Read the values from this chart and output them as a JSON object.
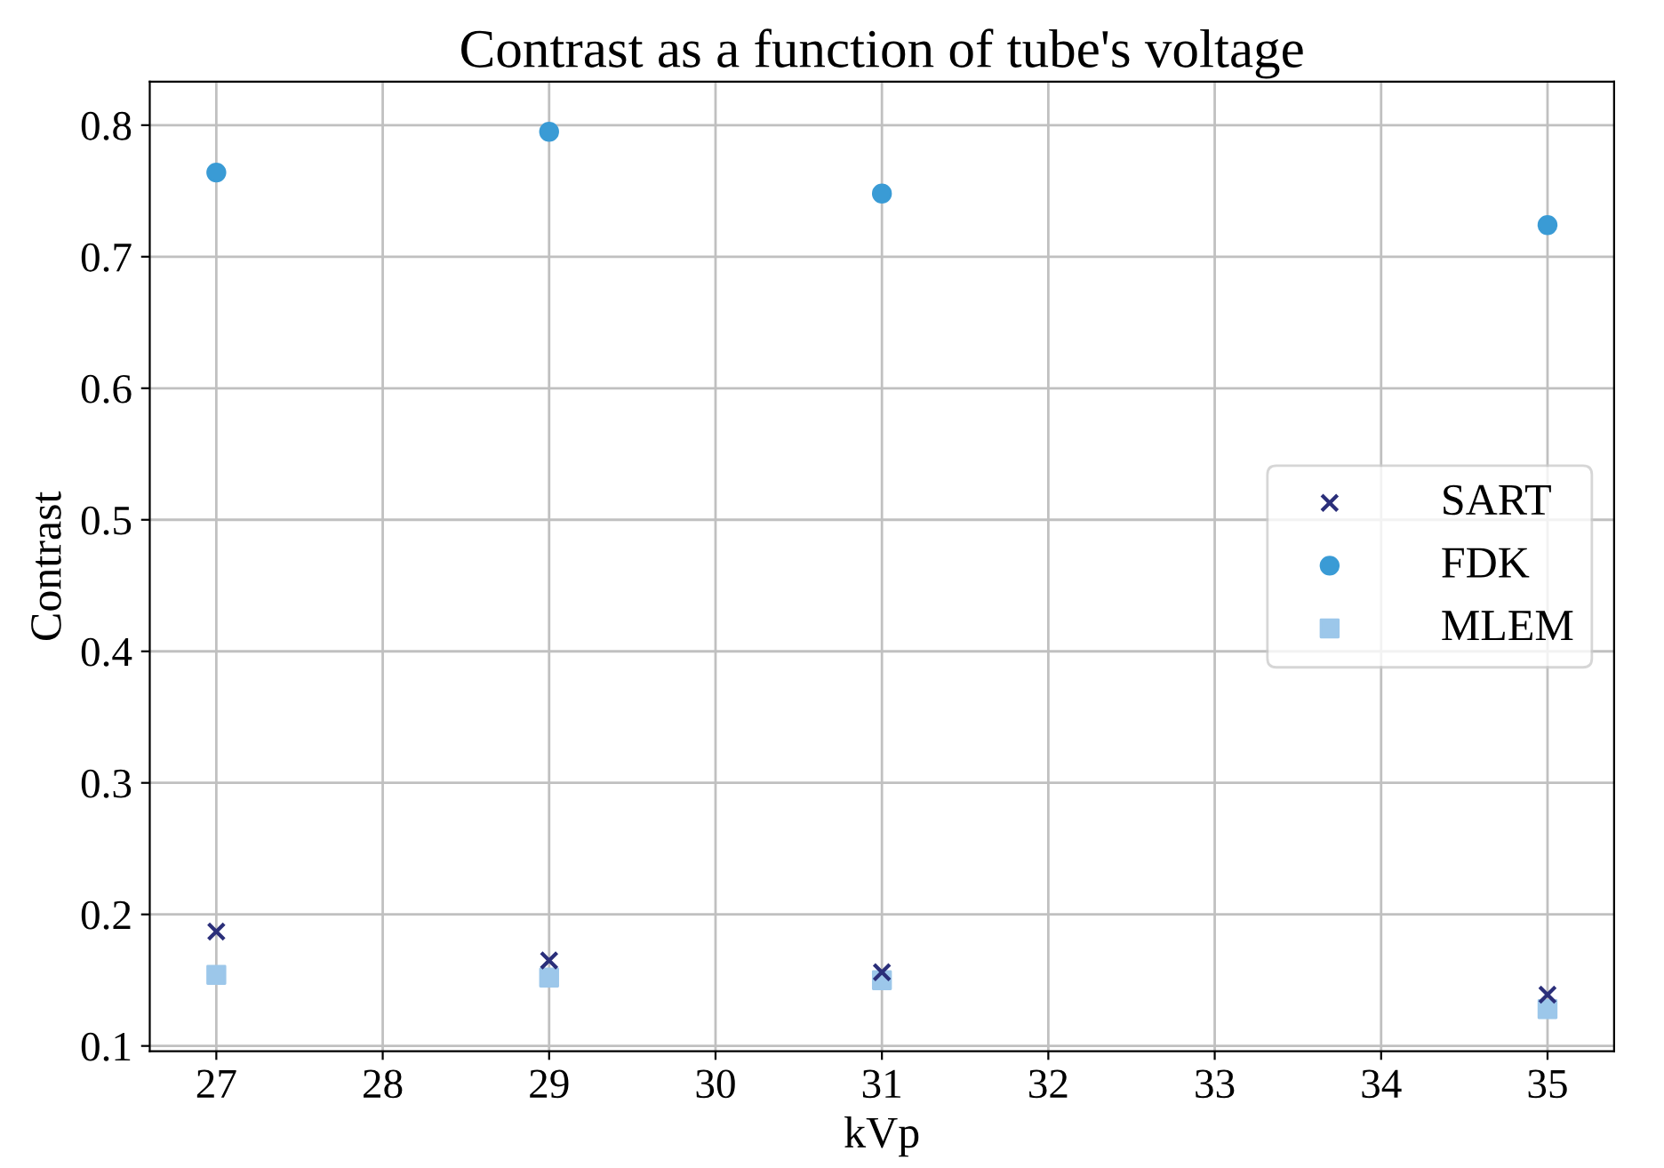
{
  "chart_data": {
    "type": "scatter",
    "title": "Contrast as a function of tube's voltage",
    "xlabel": "kVp",
    "ylabel": "Contrast",
    "x": [
      27,
      29,
      31,
      35
    ],
    "series": [
      {
        "name": "SART",
        "color": "#2b2f7a",
        "marker": "cross",
        "values": [
          0.187,
          0.165,
          0.156,
          0.139
        ]
      },
      {
        "name": "FDK",
        "color": "#3a9bd5",
        "marker": "circle",
        "values": [
          0.764,
          0.795,
          0.748,
          0.724
        ]
      },
      {
        "name": "MLEM",
        "color": "#9cc7ea",
        "marker": "square",
        "values": [
          0.154,
          0.152,
          0.15,
          0.128
        ]
      }
    ],
    "xlim": [
      26.6,
      35.4
    ],
    "xticks": [
      27,
      28,
      29,
      30,
      31,
      32,
      33,
      34,
      35
    ],
    "ylim": [
      0.096,
      0.833
    ],
    "yticks": [
      0.1,
      0.2,
      0.3,
      0.4,
      0.5,
      0.6,
      0.7,
      0.8
    ],
    "grid": true,
    "legend": "right"
  }
}
